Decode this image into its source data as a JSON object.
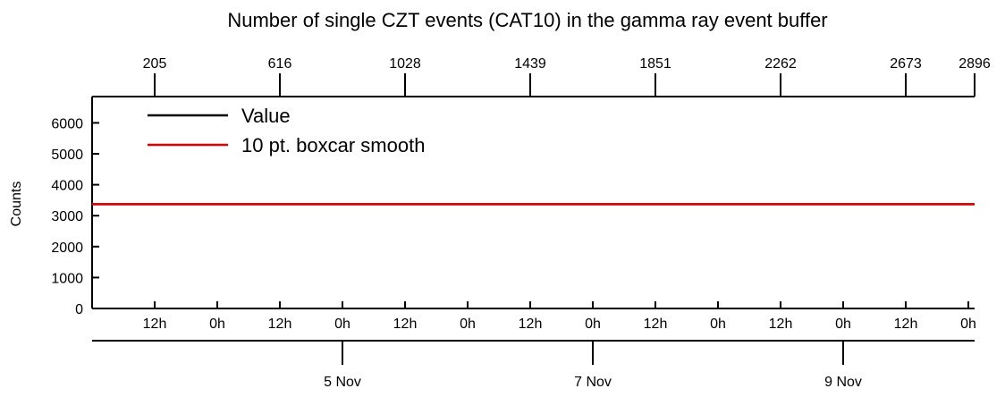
{
  "chart_data": {
    "type": "line",
    "title": "Number of single CZT events (CAT10) in the gamma ray event buffer",
    "y_label": "Counts",
    "x": [
      0,
      169.2
    ],
    "series": [
      {
        "name": "Value",
        "color": "#000000",
        "values": [
          3370,
          3370
        ]
      },
      {
        "name": "10 pt. boxcar smooth",
        "color": "#e00000",
        "values": [
          3370,
          3370
        ]
      }
    ],
    "xlim": [
      0,
      169.2
    ],
    "xticks": [
      {
        "value": 12,
        "label": "12h"
      },
      {
        "value": 24,
        "label": "0h"
      },
      {
        "value": 36,
        "label": "12h"
      },
      {
        "value": 48,
        "label": "0h"
      },
      {
        "value": 60,
        "label": "12h"
      },
      {
        "value": 72,
        "label": "0h"
      },
      {
        "value": 84,
        "label": "12h"
      },
      {
        "value": 96,
        "label": "0h"
      },
      {
        "value": 108,
        "label": "12h"
      },
      {
        "value": 120,
        "label": "0h"
      },
      {
        "value": 132,
        "label": "12h"
      },
      {
        "value": 144,
        "label": "0h"
      },
      {
        "value": 156,
        "label": "12h"
      },
      {
        "value": 168,
        "label": "0h"
      }
    ],
    "date_ticks": [
      {
        "value": 48,
        "label": "5 Nov"
      },
      {
        "value": 96,
        "label": "7 Nov"
      },
      {
        "value": 144,
        "label": "9 Nov"
      }
    ],
    "top_ticks": [
      {
        "value": 12,
        "label": "205"
      },
      {
        "value": 36,
        "label": "616"
      },
      {
        "value": 60,
        "label": "1028"
      },
      {
        "value": 84,
        "label": "1439"
      },
      {
        "value": 108,
        "label": "1851"
      },
      {
        "value": 132,
        "label": "2262"
      },
      {
        "value": 156,
        "label": "2673"
      },
      {
        "value": 169.2,
        "label": "2896"
      }
    ],
    "ylim": [
      0,
      6850
    ],
    "yticks": [
      0,
      1000,
      2000,
      3000,
      4000,
      5000,
      6000
    ]
  }
}
